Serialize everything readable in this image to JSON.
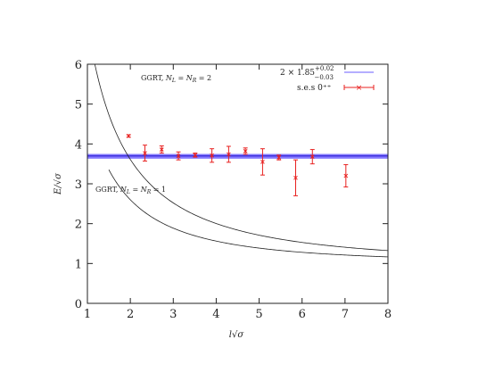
{
  "chart_data": {
    "type": "scatter",
    "xlabel": "l√σ",
    "ylabel": "E/√σ",
    "xlim": [
      1,
      8
    ],
    "ylim": [
      0,
      6
    ],
    "xticks": [
      1,
      2,
      3,
      4,
      5,
      6,
      7,
      8
    ],
    "yticks": [
      0,
      1,
      2,
      3,
      4,
      5,
      6
    ],
    "grid": false,
    "legend_position": "top-right",
    "band": {
      "label": "2 × 1.85",
      "sup": "+0.02",
      "sub": "−0.03",
      "center": 3.7,
      "low": 3.64,
      "high": 3.74,
      "color": "#6a5cff"
    },
    "series": [
      {
        "name": "s.e.s 0⁺⁺",
        "color": "#e8201f",
        "x": [
          1.96,
          2.34,
          2.73,
          3.12,
          3.51,
          3.9,
          4.29,
          4.68,
          5.08,
          5.46,
          5.85,
          6.24,
          7.02
        ],
        "y": [
          4.2,
          3.77,
          3.86,
          3.7,
          3.72,
          3.71,
          3.74,
          3.82,
          3.55,
          3.66,
          3.15,
          3.68,
          3.2
        ],
        "err": [
          0.03,
          0.2,
          0.09,
          0.1,
          0.05,
          0.17,
          0.2,
          0.08,
          0.33,
          0.06,
          0.45,
          0.18,
          0.28
        ]
      }
    ],
    "curves": [
      {
        "label": "GGRT, N_L = N_R = 2",
        "label_parts": [
          "GGRT, ",
          "N",
          "L",
          " = ",
          "N",
          "R",
          " = 2"
        ],
        "nl": 2
      },
      {
        "label": "GGRT, N_L = N_R = 1",
        "label_parts": [
          "GGRT, ",
          "N",
          "L",
          " = ",
          "N",
          "R",
          " = 1"
        ],
        "nl": 1
      }
    ]
  }
}
